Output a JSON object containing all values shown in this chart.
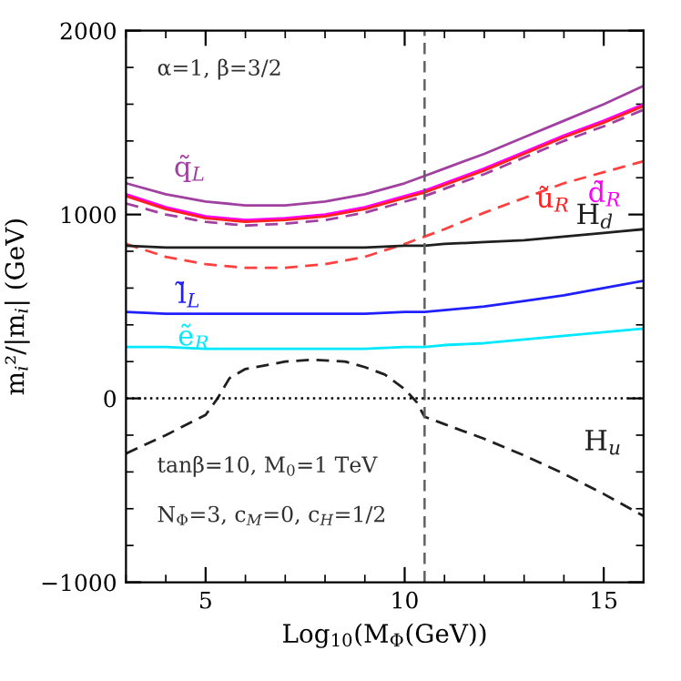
{
  "chart_data": {
    "type": "line",
    "xlabel": "Log$_{10}$(M$_{Φ}$(GeV))",
    "ylabel": "m$_{i}$²/|m$_{i}$| (GeV)",
    "x": [
      3,
      4,
      5,
      6,
      7,
      8,
      9,
      10,
      10.5,
      11,
      12,
      13,
      14,
      15,
      16
    ],
    "series": [
      {
        "name": "q̃$_{L}$",
        "color": "#a040a0",
        "line_style": "solid",
        "values": [
          1170,
          1110,
          1070,
          1050,
          1050,
          1070,
          1110,
          1170,
          1210,
          1250,
          1330,
          1420,
          1510,
          1600,
          1700
        ]
      },
      {
        "name": "d̃$_{R}$",
        "color": "#ff00ff",
        "line_style": "solid",
        "values": [
          1110,
          1040,
          990,
          970,
          980,
          1000,
          1040,
          1100,
          1130,
          1170,
          1250,
          1340,
          1430,
          1510,
          1600
        ]
      },
      {
        "name": "ũ$_{R}$",
        "color": "#ff2020",
        "line_style": "solid",
        "values": [
          1100,
          1030,
          980,
          960,
          970,
          990,
          1030,
          1090,
          1120,
          1160,
          1240,
          1330,
          1420,
          1500,
          1590
        ]
      },
      {
        "color": "#a040a0",
        "line_style": "dashed",
        "values": [
          1060,
          1000,
          960,
          940,
          950,
          970,
          1010,
          1070,
          1100,
          1140,
          1220,
          1310,
          1400,
          1480,
          1570
        ]
      },
      {
        "color": "#ff4040",
        "line_style": "dashed",
        "values": [
          840,
          770,
          730,
          710,
          710,
          730,
          770,
          840,
          880,
          920,
          1010,
          1090,
          1170,
          1230,
          1290
        ]
      },
      {
        "name": "H$_{d}$",
        "color": "#202020",
        "line_style": "solid",
        "values": [
          830,
          820,
          820,
          820,
          820,
          820,
          820,
          830,
          830,
          840,
          850,
          860,
          880,
          900,
          920
        ]
      },
      {
        "name": "l̃$_{L}$",
        "color": "#2020ff",
        "line_style": "solid",
        "values": [
          470,
          460,
          460,
          460,
          460,
          460,
          460,
          470,
          470,
          480,
          500,
          530,
          560,
          600,
          640
        ]
      },
      {
        "name": "ẽ$_{R}$",
        "color": "#00e8ff",
        "line_style": "solid",
        "values": [
          280,
          280,
          270,
          270,
          270,
          270,
          270,
          280,
          280,
          290,
          300,
          320,
          340,
          360,
          380
        ]
      },
      {
        "name": "H$_{u}$",
        "color": "#202020",
        "line_style": "dashed",
        "x": [
          3,
          4,
          5,
          5.3,
          5.6,
          6,
          7,
          7.7,
          8.5,
          9,
          9.5,
          10,
          10.3,
          10.5,
          11,
          12,
          13,
          14,
          15,
          16
        ],
        "values": [
          -300,
          -200,
          -90,
          0,
          110,
          160,
          200,
          210,
          200,
          170,
          130,
          50,
          -20,
          -100,
          -140,
          -220,
          -310,
          -410,
          -520,
          -640
        ]
      }
    ],
    "xlim": [
      3,
      16
    ],
    "xticks": [
      5,
      10,
      15
    ],
    "ylim": [
      -1000,
      2000
    ],
    "yticks": [
      -1000,
      0,
      1000,
      2000
    ],
    "ref_lines": [
      {
        "axis": "x",
        "value": 10.5,
        "color": "#606060",
        "line_style": "dashed"
      },
      {
        "axis": "y",
        "value": 0,
        "color": "#000000",
        "line_style": "dotted"
      }
    ],
    "annotations": [
      "α=1, β=3/2",
      "tanβ=10, M$_{0}$=1 TeV",
      "N$_{Φ}$=3, c$_{M}$=0, c$_{H}$=1/2"
    ],
    "grid": false,
    "legend": false
  }
}
